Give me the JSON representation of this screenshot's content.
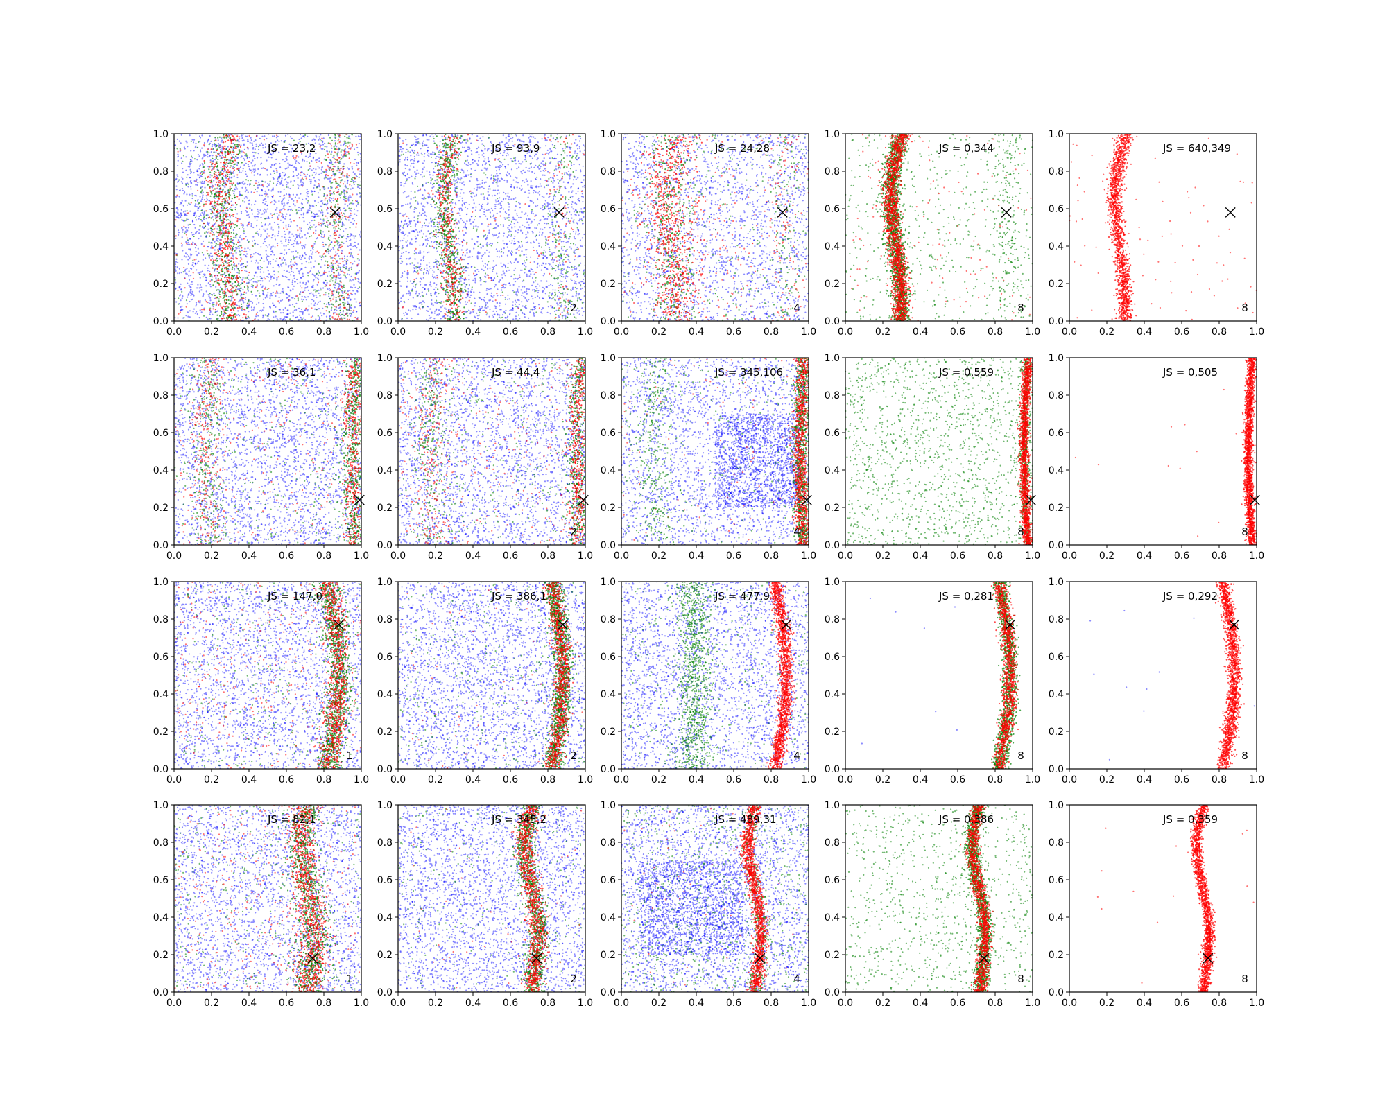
{
  "figure": {
    "rows": 4,
    "cols": 5
  },
  "colors": {
    "blue": "#0000ff",
    "green": "#008000",
    "red": "#ff0000",
    "marker": "#000000"
  },
  "axes": {
    "xlim": [
      0,
      1
    ],
    "ylim": [
      0,
      1
    ],
    "xticks": [
      "0.0",
      "0.2",
      "0.4",
      "0.6",
      "0.8",
      "1.0"
    ],
    "yticks": [
      "0.0",
      "0.2",
      "0.4",
      "0.6",
      "0.8",
      "1.0"
    ]
  },
  "chart_data": [
    {
      "type": "scatter",
      "row": 0,
      "col": 0,
      "js": "JS = 23,2",
      "k": "1",
      "marker": [
        0.86,
        0.58
      ],
      "xlim": [
        0,
        1
      ],
      "ylim": [
        0,
        1
      ]
    },
    {
      "type": "scatter",
      "row": 0,
      "col": 1,
      "js": "JS = 93,9",
      "k": "2",
      "marker": [
        0.86,
        0.58
      ],
      "xlim": [
        0,
        1
      ],
      "ylim": [
        0,
        1
      ]
    },
    {
      "type": "scatter",
      "row": 0,
      "col": 2,
      "js": "JS = 24,28",
      "k": "4",
      "marker": [
        0.86,
        0.58
      ],
      "xlim": [
        0,
        1
      ],
      "ylim": [
        0,
        1
      ]
    },
    {
      "type": "scatter",
      "row": 0,
      "col": 3,
      "js": "JS = 0,344",
      "k": "8",
      "marker": [
        0.86,
        0.58
      ],
      "xlim": [
        0,
        1
      ],
      "ylim": [
        0,
        1
      ]
    },
    {
      "type": "scatter",
      "row": 0,
      "col": 4,
      "js": "JS = 640,349",
      "k": "8",
      "marker": [
        0.86,
        0.58
      ],
      "xlim": [
        0,
        1
      ],
      "ylim": [
        0,
        1
      ]
    },
    {
      "type": "scatter",
      "row": 1,
      "col": 0,
      "js": "JS = 36,1",
      "k": "1",
      "marker": [
        0.99,
        0.24
      ],
      "xlim": [
        0,
        1
      ],
      "ylim": [
        0,
        1
      ]
    },
    {
      "type": "scatter",
      "row": 1,
      "col": 1,
      "js": "JS = 44,4",
      "k": "2",
      "marker": [
        0.99,
        0.24
      ],
      "xlim": [
        0,
        1
      ],
      "ylim": [
        0,
        1
      ]
    },
    {
      "type": "scatter",
      "row": 1,
      "col": 2,
      "js": "JS = 345,106",
      "k": "4",
      "marker": [
        0.99,
        0.24
      ],
      "xlim": [
        0,
        1
      ],
      "ylim": [
        0,
        1
      ]
    },
    {
      "type": "scatter",
      "row": 1,
      "col": 3,
      "js": "JS = 0,559",
      "k": "8",
      "marker": [
        0.99,
        0.24
      ],
      "xlim": [
        0,
        1
      ],
      "ylim": [
        0,
        1
      ]
    },
    {
      "type": "scatter",
      "row": 1,
      "col": 4,
      "js": "JS = 0,505",
      "k": "8",
      "marker": [
        0.99,
        0.24
      ],
      "xlim": [
        0,
        1
      ],
      "ylim": [
        0,
        1
      ]
    },
    {
      "type": "scatter",
      "row": 2,
      "col": 0,
      "js": "JS = 147,0",
      "k": "1",
      "marker": [
        0.88,
        0.77
      ],
      "xlim": [
        0,
        1
      ],
      "ylim": [
        0,
        1
      ]
    },
    {
      "type": "scatter",
      "row": 2,
      "col": 1,
      "js": "JS = 386,1",
      "k": "2",
      "marker": [
        0.88,
        0.77
      ],
      "xlim": [
        0,
        1
      ],
      "ylim": [
        0,
        1
      ]
    },
    {
      "type": "scatter",
      "row": 2,
      "col": 2,
      "js": "JS = 477,9",
      "k": "4",
      "marker": [
        0.88,
        0.77
      ],
      "xlim": [
        0,
        1
      ],
      "ylim": [
        0,
        1
      ]
    },
    {
      "type": "scatter",
      "row": 2,
      "col": 3,
      "js": "JS = 0,281",
      "k": "8",
      "marker": [
        0.88,
        0.77
      ],
      "xlim": [
        0,
        1
      ],
      "ylim": [
        0,
        1
      ]
    },
    {
      "type": "scatter",
      "row": 2,
      "col": 4,
      "js": "JS = 0,292",
      "k": "8",
      "marker": [
        0.88,
        0.77
      ],
      "xlim": [
        0,
        1
      ],
      "ylim": [
        0,
        1
      ]
    },
    {
      "type": "scatter",
      "row": 3,
      "col": 0,
      "js": "JS = 82,1",
      "k": "1",
      "marker": [
        0.74,
        0.18
      ],
      "xlim": [
        0,
        1
      ],
      "ylim": [
        0,
        1
      ]
    },
    {
      "type": "scatter",
      "row": 3,
      "col": 1,
      "js": "JS = 345,2",
      "k": "2",
      "marker": [
        0.74,
        0.18
      ],
      "xlim": [
        0,
        1
      ],
      "ylim": [
        0,
        1
      ]
    },
    {
      "type": "scatter",
      "row": 3,
      "col": 2,
      "js": "JS = 489,31",
      "k": "4",
      "marker": [
        0.74,
        0.18
      ],
      "xlim": [
        0,
        1
      ],
      "ylim": [
        0,
        1
      ]
    },
    {
      "type": "scatter",
      "row": 3,
      "col": 3,
      "js": "JS = 0,386",
      "k": "8",
      "marker": [
        0.74,
        0.18
      ],
      "xlim": [
        0,
        1
      ],
      "ylim": [
        0,
        1
      ]
    },
    {
      "type": "scatter",
      "row": 3,
      "col": 4,
      "js": "JS = 0,359",
      "k": "8",
      "marker": [
        0.74,
        0.18
      ],
      "xlim": [
        0,
        1
      ],
      "ylim": [
        0,
        1
      ]
    }
  ]
}
